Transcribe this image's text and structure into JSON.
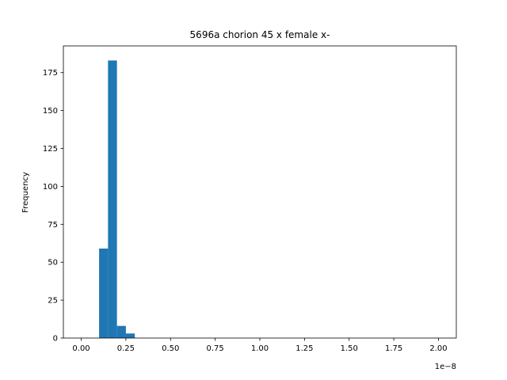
{
  "chart_data": {
    "type": "bar",
    "title": "5696a chorion 45 x female x-",
    "xlabel": "",
    "ylabel": "Frequency",
    "offset_label": "1e−8",
    "x_ticks": [
      0.0,
      0.25,
      0.5,
      0.75,
      1.0,
      1.25,
      1.5,
      1.75,
      2.0
    ],
    "x_tick_labels": [
      "0.00",
      "0.25",
      "0.50",
      "0.75",
      "1.00",
      "1.25",
      "1.50",
      "1.75",
      "2.00"
    ],
    "y_ticks": [
      0,
      25,
      50,
      75,
      100,
      125,
      150,
      175
    ],
    "y_tick_labels": [
      "0",
      "25",
      "50",
      "75",
      "100",
      "125",
      "150",
      "175"
    ],
    "xlim": [
      -0.1,
      2.1
    ],
    "ylim": [
      0,
      192.6
    ],
    "bins": [
      {
        "x0": 0.1,
        "x1": 0.15,
        "value": 59
      },
      {
        "x0": 0.15,
        "x1": 0.2,
        "value": 183
      },
      {
        "x0": 0.2,
        "x1": 0.25,
        "value": 8
      },
      {
        "x0": 0.25,
        "x1": 0.3,
        "value": 3
      }
    ],
    "bar_color": "#1f77b4",
    "grid": false,
    "legend": "none"
  }
}
